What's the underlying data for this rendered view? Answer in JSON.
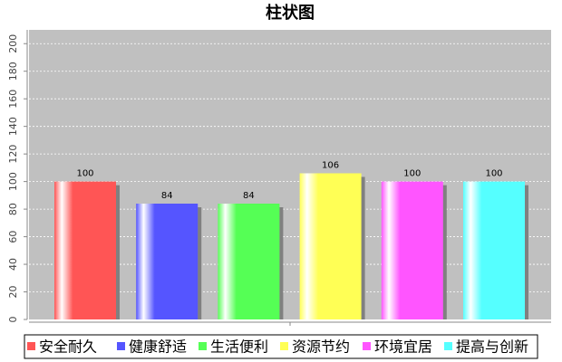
{
  "chart_data": {
    "type": "bar",
    "title": "柱状图",
    "categories": [
      "安全耐久",
      "健康舒适",
      "生活便利",
      "资源节约",
      "环境宜居",
      "提高与创新"
    ],
    "values": [
      100,
      84,
      84,
      106,
      100,
      100
    ],
    "colors": [
      "#ff5555",
      "#5555ff",
      "#55ff55",
      "#ffff55",
      "#ff55ff",
      "#55ffff"
    ],
    "ylim": [
      0,
      210
    ],
    "yticks": [
      0,
      20,
      40,
      60,
      80,
      100,
      120,
      140,
      160,
      180,
      200
    ],
    "grid": true,
    "legend": "bottom"
  }
}
